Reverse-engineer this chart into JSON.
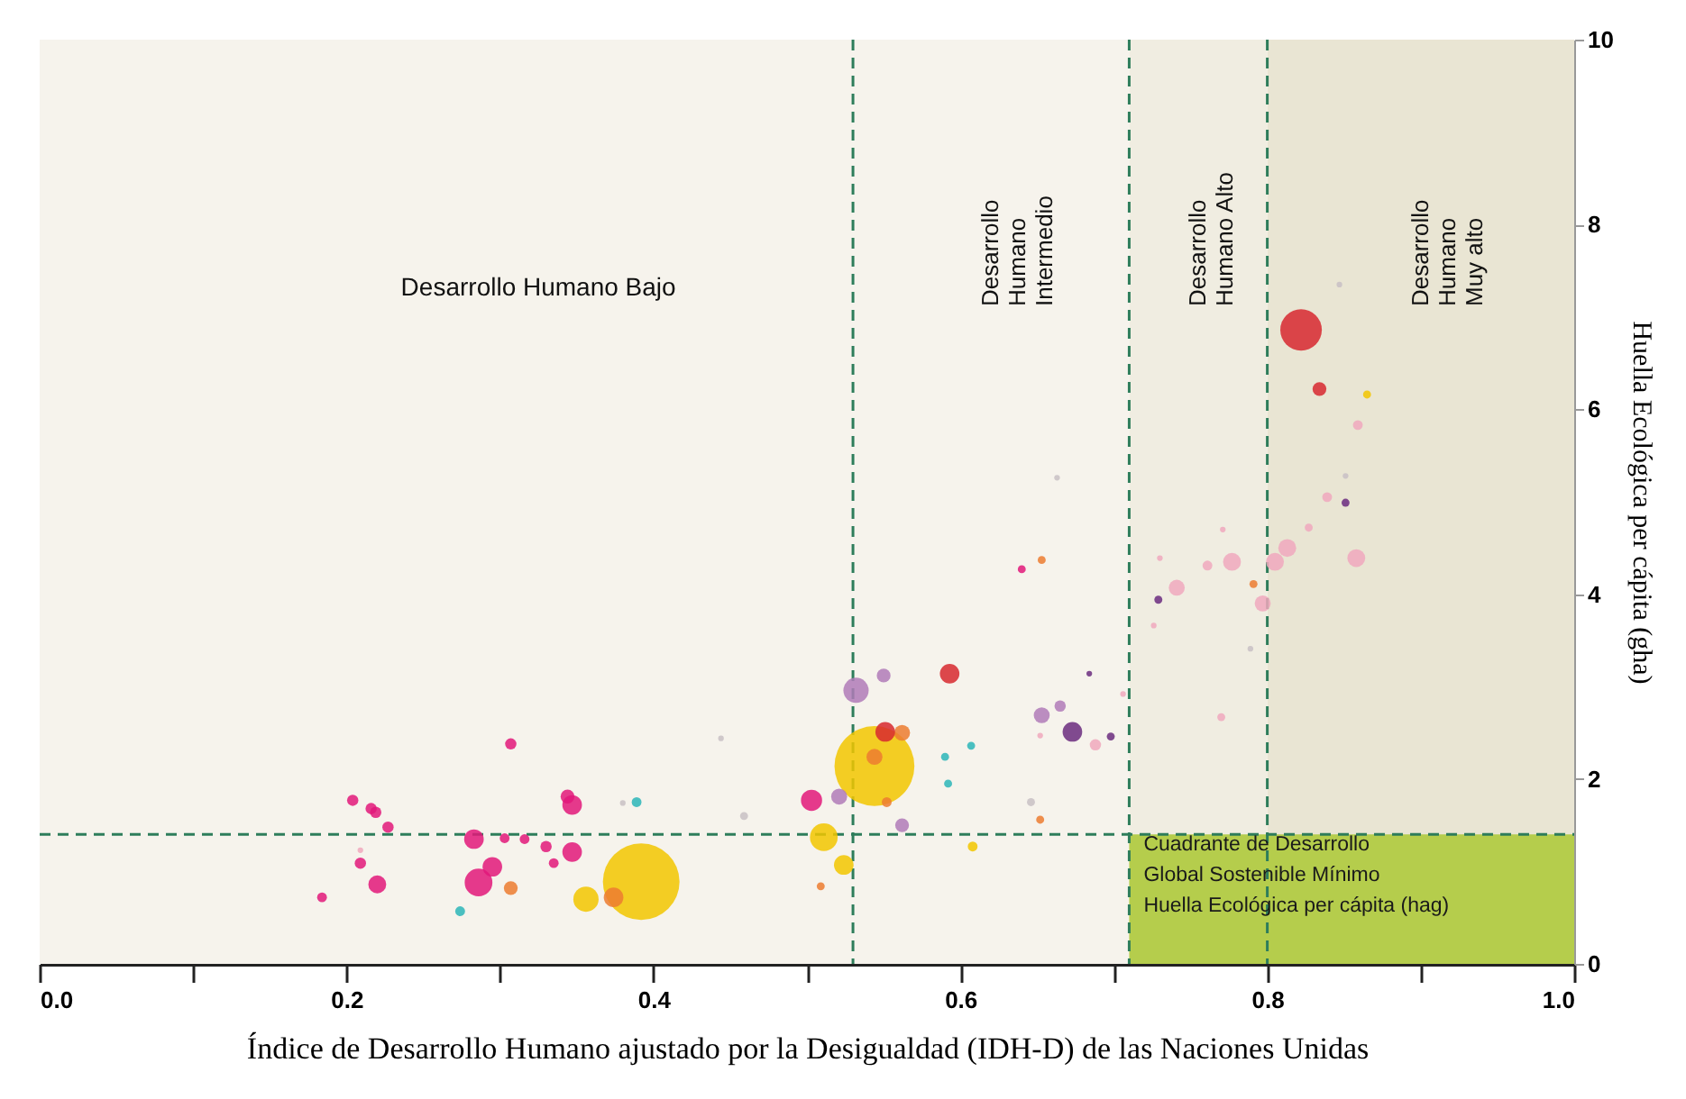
{
  "chart_data": {
    "type": "bubble",
    "xlabel": "Índice de Desarrollo Humano ajustado por la Desigualdad (IDH-D) de las Naciones Unidas",
    "ylabel": "Huella Ecológica per cápita (gha)",
    "xlim": [
      0,
      1
    ],
    "ylim": [
      0,
      10
    ],
    "xticks": [
      {
        "value": 0,
        "label": "0.0"
      },
      {
        "value": 0.1,
        "label": null
      },
      0.2,
      {
        "value": 0.3,
        "label": null
      },
      0.4,
      {
        "value": 0.5,
        "label": null
      },
      0.6,
      {
        "value": 0.7,
        "label": null
      },
      0.8,
      {
        "value": 0.9,
        "label": null
      },
      {
        "value": 1,
        "label": "1.0"
      }
    ],
    "yticks": [
      0,
      2,
      4,
      6,
      8,
      10
    ],
    "grid": false,
    "series": [
      {
        "color": "#e2187a",
        "x": [
          0.307,
          0.204,
          0.216,
          0.219,
          0.227,
          0.209,
          0.22,
          0.184,
          0.283,
          0.303,
          0.316,
          0.286,
          0.295,
          0.33,
          0.335,
          0.347,
          0.347,
          0.344,
          0.503,
          0.64
        ],
        "values": [
          2.38,
          1.77,
          1.68,
          1.64,
          1.48,
          1.09,
          0.86,
          0.72,
          1.35,
          1.36,
          1.35,
          0.88,
          1.05,
          1.27,
          1.09,
          1.21,
          1.72,
          1.81,
          1.77,
          4.27
        ],
        "sizes": [
          0.02,
          0.02,
          0.02,
          0.02,
          0.02,
          0.02,
          0.05,
          0.015,
          0.06,
          0.015,
          0.015,
          0.12,
          0.06,
          0.02,
          0.015,
          0.06,
          0.06,
          0.03,
          0.07,
          0.01
        ]
      },
      {
        "color": "#f2c500",
        "x": [
          0.392,
          0.544,
          0.356,
          0.511,
          0.524,
          0.608,
          0.865
        ],
        "values": [
          0.89,
          2.14,
          0.7,
          1.37,
          1.07,
          1.27,
          6.16
        ],
        "sizes": [
          0.92,
          1,
          0.1,
          0.12,
          0.06,
          0.015,
          0.01
        ]
      },
      {
        "color": "#ec7b30",
        "x": [
          0.307,
          0.374,
          0.509,
          0.562,
          0.544,
          0.552,
          0.652,
          0.653,
          0.791
        ],
        "values": [
          0.82,
          0.72,
          0.84,
          2.5,
          2.24,
          1.75,
          1.56,
          4.37,
          4.11
        ],
        "sizes": [
          0.03,
          0.06,
          0.01,
          0.04,
          0.04,
          0.015,
          0.01,
          0.01,
          0.01
        ]
      },
      {
        "color": "#2bb5b8",
        "x": [
          0.274,
          0.389,
          0.59,
          0.607,
          0.592
        ],
        "values": [
          0.57,
          1.75,
          2.24,
          2.36,
          1.95
        ],
        "sizes": [
          0.015,
          0.015,
          0.01,
          0.01,
          0.01
        ]
      },
      {
        "color": "#d7282f",
        "x": [
          0.593,
          0.551,
          0.822,
          0.834
        ],
        "values": [
          3.14,
          2.51,
          6.86,
          6.22
        ],
        "sizes": [
          0.06,
          0.06,
          0.27,
          0.03
        ]
      },
      {
        "color": "#b07ab8",
        "x": [
          0.532,
          0.55,
          0.521,
          0.562,
          0.653,
          0.665
        ],
        "values": [
          2.96,
          3.12,
          1.81,
          1.5,
          2.69,
          2.79
        ],
        "sizes": [
          0.1,
          0.03,
          0.04,
          0.03,
          0.04,
          0.02
        ]
      },
      {
        "color": "#6b2c7f",
        "x": [
          0.673,
          0.698,
          0.684,
          0.729,
          0.851
        ],
        "values": [
          2.51,
          2.46,
          3.14,
          3.94,
          4.99
        ],
        "sizes": [
          0.06,
          0.01,
          0.005,
          0.01,
          0.01
        ]
      },
      {
        "color": "#f0a8bd",
        "x": [
          0.209,
          0.688,
          0.839,
          0.859,
          0.827,
          0.813,
          0.805,
          0.858,
          0.777,
          0.761,
          0.741,
          0.797,
          0.73,
          0.726,
          0.771,
          0.77,
          0.706,
          0.652
        ],
        "values": [
          1.23,
          2.37,
          5.05,
          5.83,
          4.72,
          4.5,
          4.35,
          4.39,
          4.35,
          4.31,
          4.07,
          3.9,
          4.39,
          3.66,
          4.7,
          2.67,
          2.92,
          2.47
        ],
        "sizes": [
          0.005,
          0.02,
          0.015,
          0.015,
          0.01,
          0.05,
          0.05,
          0.05,
          0.05,
          0.015,
          0.04,
          0.04,
          0.005,
          0.005,
          0.005,
          0.01,
          0.005,
          0.005
        ]
      },
      {
        "color": "#c8c0c4",
        "x": [
          0.38,
          0.459,
          0.444,
          0.646,
          0.663,
          0.847,
          0.851,
          0.789
        ],
        "values": [
          1.74,
          1.6,
          2.44,
          1.75,
          5.26,
          7.35,
          5.28,
          3.41
        ],
        "sizes": [
          0.005,
          0.01,
          0.005,
          0.01,
          0.005,
          0.005,
          0.005,
          0.005
        ]
      }
    ],
    "bands": [
      {
        "axis": "x",
        "from": 0,
        "to": 0.53,
        "label": "Desarrollo Humano Bajo",
        "color": "#f6f3ec"
      },
      {
        "axis": "x",
        "from": 0.53,
        "to": 0.71,
        "label": "Desarrollo\nHumano\nIntermedio",
        "color": "#f6f3ec"
      },
      {
        "axis": "x",
        "from": 0.71,
        "to": 0.8,
        "label": "Desarrollo\nHumano Alto",
        "color": "#f0ede1"
      },
      {
        "axis": "x",
        "from": 0.8,
        "to": 1,
        "label": "Desarrollo\nHumano\nMuy alto",
        "color": "#e9e5d3"
      },
      {
        "axis": "y",
        "from": 0,
        "to": 1.4,
        "label": "Cuadrante de Desarrollo\nGlobal Sostenible Mínimo\nHuella Ecológica per cápita (hag)",
        "color": "#b5cd4c"
      }
    ],
    "ref_lines": [
      {
        "axis": "x",
        "value": 0.53,
        "color": "#2e7d5b",
        "line_style": "dashed"
      },
      {
        "axis": "x",
        "value": 0.71,
        "color": "#2e7d5b",
        "line_style": "dashed"
      },
      {
        "axis": "x",
        "value": 0.8,
        "color": "#2e7d5b",
        "line_style": "dashed"
      },
      {
        "axis": "y",
        "value": 1.4,
        "color": "#2e7d5b",
        "line_style": "dashed"
      }
    ]
  }
}
